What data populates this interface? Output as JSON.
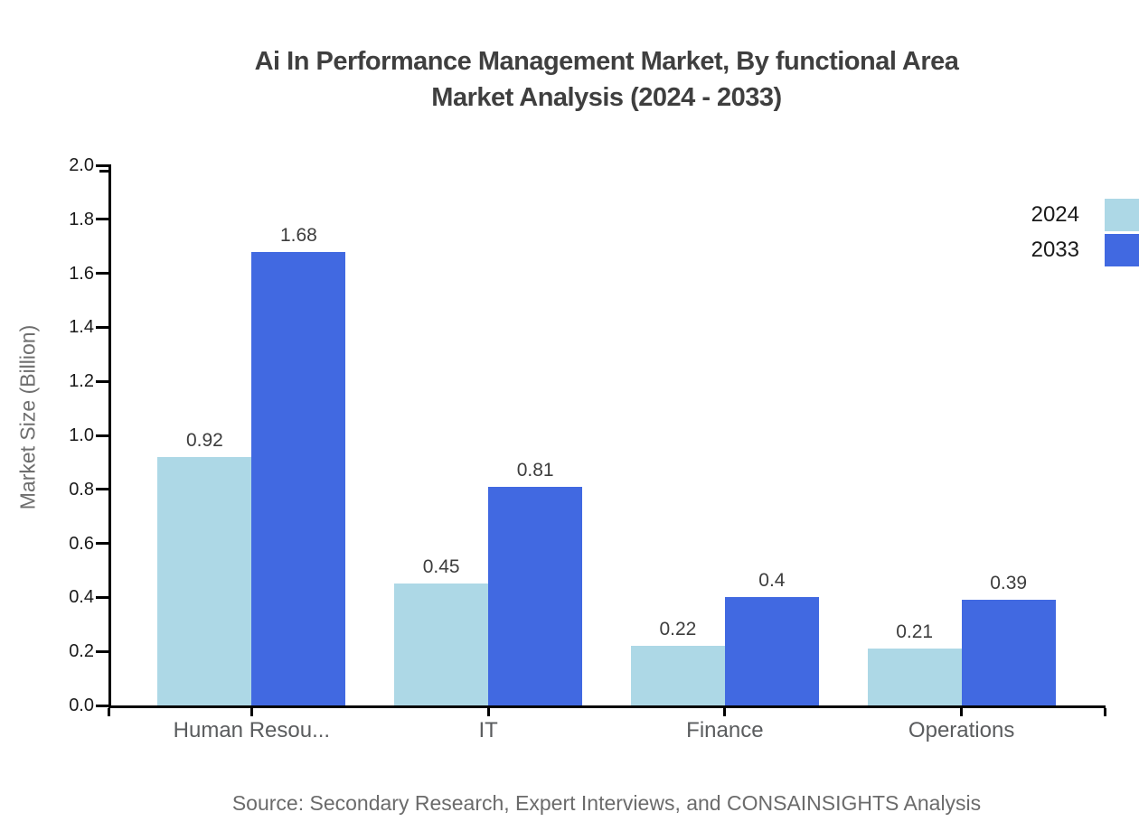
{
  "title": {
    "line1": "Ai In Performance Management Market, By functional Area",
    "line2": "Market Analysis (2024 - 2033)"
  },
  "colors": {
    "series_2024": "#ADD8E6",
    "series_2033": "#4169E1",
    "axis": "#000000",
    "title_text": "#3f3f3f",
    "category_label": "#5a5c5e",
    "value_label": "#3d3d3d",
    "axis_title": "#6e6e6e",
    "source_text": "#6b6b6b"
  },
  "chart_data": {
    "type": "bar",
    "title": "Ai In Performance Management Market, By functional Area Market Analysis (2024 - 2033)",
    "categories": [
      "Human Resou...",
      "IT",
      "Finance",
      "Operations"
    ],
    "series": [
      {
        "name": "2024",
        "color": "#ADD8E6",
        "values": [
          0.92,
          0.45,
          0.22,
          0.21
        ]
      },
      {
        "name": "2033",
        "color": "#4169E1",
        "values": [
          1.68,
          0.81,
          0.4,
          0.39
        ]
      }
    ],
    "xlabel": "",
    "ylabel": "Market Size (Billion)",
    "ylim": [
      0,
      2.0
    ],
    "ytick_step": 0.2,
    "yticks": [
      "2.0",
      "1.8",
      "1.6",
      "1.4",
      "1.2",
      "1.0",
      "0.8",
      "0.6",
      "0.4",
      "0.2",
      "0.0"
    ],
    "grid": false,
    "legend_position": "top-right",
    "value_labels_shown": true,
    "source": "Source: Secondary Research, Expert Interviews, and CONSAINSIGHTS Analysis"
  }
}
